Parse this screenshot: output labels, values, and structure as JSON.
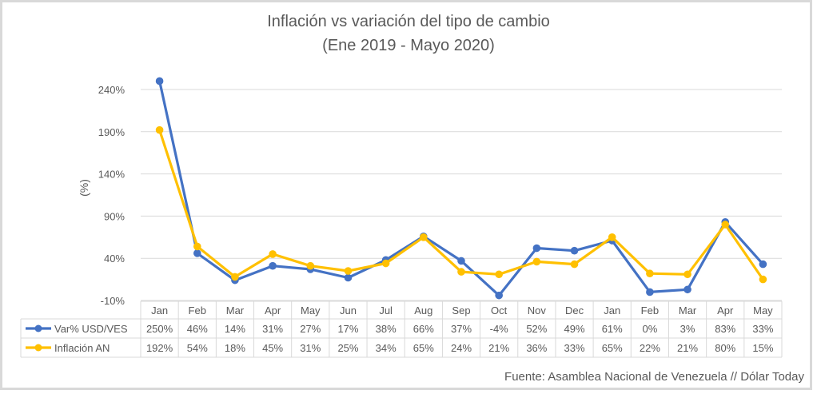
{
  "chart_data": {
    "type": "line",
    "title": "Inflación vs variación del tipo de cambio",
    "subtitle": "(Ene 2019 - Mayo 2020)",
    "ylabel": "(%)",
    "xlabel": "",
    "ylim": [
      -10,
      260
    ],
    "yticks": [
      "240%",
      "190%",
      "140%",
      "90%",
      "40%",
      "-10%"
    ],
    "ytick_values": [
      240,
      190,
      140,
      90,
      40,
      -10
    ],
    "grid": true,
    "legend": "data-table",
    "categories": [
      "Jan",
      "Feb",
      "Mar",
      "Apr",
      "May",
      "Jun",
      "Jul",
      "Aug",
      "Sep",
      "Oct",
      "Nov",
      "Dec",
      "Jan",
      "Feb",
      "Mar",
      "Apr",
      "May"
    ],
    "series": [
      {
        "name": "Var% USD/VES",
        "color": "#4472c4",
        "values": [
          250,
          46,
          14,
          31,
          27,
          17,
          38,
          66,
          37,
          -4,
          52,
          49,
          61,
          0,
          3,
          83,
          33
        ],
        "labels": [
          "250%",
          "46%",
          "14%",
          "31%",
          "27%",
          "17%",
          "38%",
          "66%",
          "37%",
          "-4%",
          "52%",
          "49%",
          "61%",
          "0%",
          "3%",
          "83%",
          "33%"
        ]
      },
      {
        "name": "Inflación AN",
        "color": "#ffc000",
        "values": [
          192,
          54,
          18,
          45,
          31,
          25,
          34,
          65,
          24,
          21,
          36,
          33,
          65,
          22,
          21,
          80,
          15
        ],
        "labels": [
          "192%",
          "54%",
          "18%",
          "45%",
          "31%",
          "25%",
          "34%",
          "65%",
          "24%",
          "21%",
          "36%",
          "33%",
          "65%",
          "22%",
          "21%",
          "80%",
          "15%"
        ]
      }
    ],
    "source": "Fuente: Asamblea Nacional de Venezuela // Dólar Today"
  }
}
